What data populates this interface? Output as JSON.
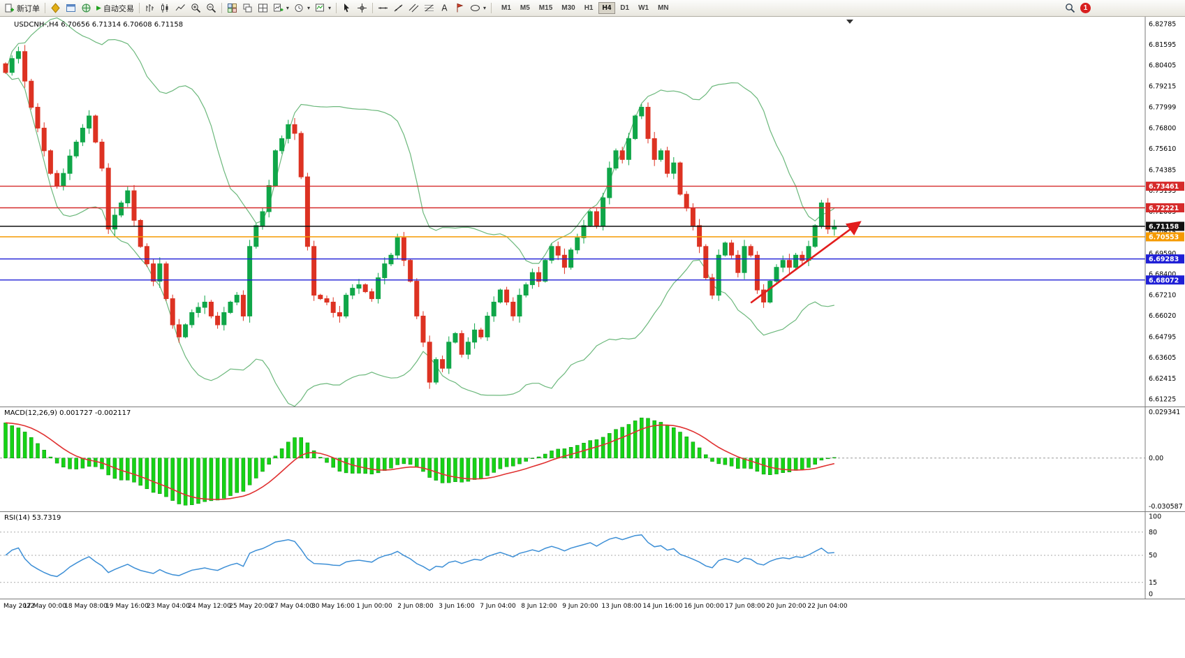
{
  "toolbar": {
    "new_order_label": "新订单",
    "autotrade_label": "自动交易",
    "timeframes": [
      "M1",
      "M5",
      "M15",
      "M30",
      "H1",
      "H4",
      "D1",
      "W1",
      "MN"
    ],
    "active_timeframe": "H4",
    "notification_count": "1",
    "dropdown_glyph": "▾",
    "play_glyph": "▶"
  },
  "chart": {
    "symbol_title": "USDCNH-,H4",
    "open": "6.70656",
    "high": "6.71314",
    "low": "6.70608",
    "close": "6.71158"
  },
  "macd_panel": {
    "label": "MACD(12,26,9)",
    "main_value": "0.001727",
    "signal_value": "-0.002117",
    "axis_ticks": [
      "0.029341",
      "0.00",
      "-0.030587"
    ]
  },
  "rsi_panel": {
    "label": "RSI(14)",
    "value": "53.7319",
    "axis_ticks": [
      "100",
      "80",
      "50",
      "15",
      "0"
    ],
    "levels": [
      80,
      50,
      15
    ]
  },
  "price_axis_ticks": [
    "6.82785",
    "6.81595",
    "6.80405",
    "6.79215",
    "6.77999",
    "6.76800",
    "6.75610",
    "6.74385",
    "6.73195",
    "6.72005",
    "6.70815",
    "6.69590",
    "6.68400",
    "6.67210",
    "6.66020",
    "6.64795",
    "6.63605",
    "6.62415",
    "6.61225"
  ],
  "levels": [
    {
      "label": "6.73461",
      "price": 6.73461,
      "color": "#d62b2b"
    },
    {
      "label": "6.72221",
      "price": 6.72221,
      "color": "#d62b2b"
    },
    {
      "label": "6.71158",
      "price": 6.71158,
      "color": "#111111"
    },
    {
      "label": "6.70553",
      "price": 6.70553,
      "color": "#f59a00"
    },
    {
      "label": "6.69283",
      "price": 6.69283,
      "color": "#1f1fd6"
    },
    {
      "label": "6.68072",
      "price": 6.68072,
      "color": "#1f1fd6"
    }
  ],
  "time_axis_labels": [
    "May 2022",
    "17 May 00:00",
    "18 May 08:00",
    "19 May 16:00",
    "23 May 04:00",
    "24 May 12:00",
    "25 May 20:00",
    "27 May 04:00",
    "30 May 16:00",
    "1 Jun 00:00",
    "2 Jun 08:00",
    "3 Jun 16:00",
    "7 Jun 04:00",
    "8 Jun 12:00",
    "9 Jun 20:00",
    "13 Jun 08:00",
    "14 Jun 16:00",
    "16 Jun 00:00",
    "17 Jun 08:00",
    "20 Jun 20:00",
    "22 Jun 04:00"
  ],
  "chart_data": {
    "type": "candlestick",
    "symbol": "USDCNH",
    "timeframe": "H4",
    "indicators": [
      "Bollinger Bands(20,2)",
      "MACD(12,26,9)",
      "RSI(14)"
    ],
    "price_view_range": [
      6.608,
      6.832
    ],
    "macd_view_range": [
      -0.0335,
      0.032
    ],
    "closes": [
      6.8,
      6.808,
      6.812,
      6.795,
      6.78,
      6.768,
      6.755,
      6.742,
      6.735,
      6.742,
      6.752,
      6.76,
      6.768,
      6.775,
      6.76,
      6.745,
      6.71,
      6.718,
      6.725,
      6.732,
      6.715,
      6.7,
      6.69,
      6.68,
      6.69,
      6.67,
      6.655,
      6.648,
      6.655,
      6.662,
      6.665,
      6.668,
      6.66,
      6.655,
      6.662,
      6.668,
      6.672,
      6.66,
      6.7,
      6.712,
      6.72,
      6.735,
      6.755,
      6.762,
      6.77,
      6.765,
      6.74,
      6.7,
      6.672,
      6.67,
      6.668,
      6.662,
      6.66,
      6.672,
      6.676,
      6.678,
      6.674,
      6.67,
      6.682,
      6.69,
      6.695,
      6.705,
      6.692,
      6.68,
      6.66,
      6.645,
      6.622,
      6.635,
      6.63,
      6.645,
      6.65,
      6.638,
      6.645,
      6.652,
      6.648,
      6.66,
      6.668,
      6.675,
      6.668,
      6.66,
      6.672,
      6.678,
      6.685,
      6.68,
      6.692,
      6.7,
      6.695,
      6.688,
      6.698,
      6.705,
      6.712,
      6.72,
      6.712,
      6.728,
      6.745,
      6.755,
      6.75,
      6.762,
      6.775,
      6.78,
      6.762,
      6.75,
      6.755,
      6.742,
      6.748,
      6.73,
      6.722,
      6.712,
      6.7,
      6.682,
      6.672,
      6.695,
      6.702,
      6.695,
      6.685,
      6.7,
      6.695,
      6.675,
      6.668,
      6.68,
      6.688,
      6.692,
      6.688,
      6.695,
      6.692,
      6.7,
      6.712,
      6.725,
      6.71,
      6.7116
    ],
    "trend_arrow": {
      "from_index": 116,
      "from_price": 6.6676,
      "to_index": 133,
      "to_price": 6.714
    },
    "colors": {
      "up": "#0fa648",
      "down": "#dd3222",
      "bollinger": "#6cb87c",
      "macd_hist": "#16d316",
      "macd_signal": "#e03131",
      "rsi_line": "#3d8fd6"
    }
  }
}
